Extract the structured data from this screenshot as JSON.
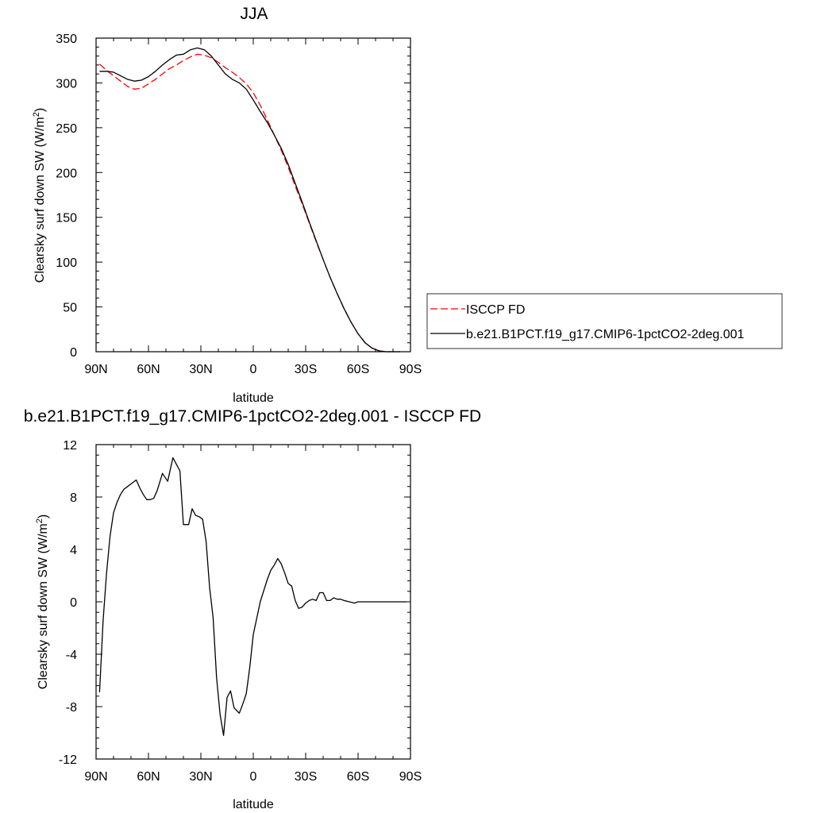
{
  "chart_data": [
    {
      "type": "line",
      "title": "JJA",
      "xlabel": "latitude",
      "ylabel": "Clearsky surf down SW (W/m",
      "ylabel_sup": "2",
      "ylabel_end": ")",
      "xlim": [
        90,
        -90
      ],
      "ylim": [
        0,
        350
      ],
      "xticks": [
        90,
        60,
        30,
        0,
        -30,
        -60,
        -90
      ],
      "xtick_labels": [
        "90N",
        "60N",
        "30N",
        "0",
        "30S",
        "60S",
        "90S"
      ],
      "yticks": [
        0,
        50,
        100,
        150,
        200,
        250,
        300,
        350
      ],
      "ytick_labels": [
        "0",
        "50",
        "100",
        "150",
        "200",
        "250",
        "300",
        "350"
      ],
      "legend_position": "right",
      "series": [
        {
          "name": "ISCCP FD",
          "color": "#ff0000",
          "dash": true,
          "x": [
            88,
            84,
            80,
            76,
            72,
            68,
            64,
            60,
            56,
            52,
            48,
            44,
            40,
            36,
            32,
            28,
            24,
            20,
            16,
            12,
            8,
            4,
            0,
            -4,
            -8,
            -12,
            -16,
            -20,
            -24,
            -28,
            -32,
            -36,
            -40,
            -44,
            -48,
            -52,
            -56,
            -60,
            -64,
            -68,
            -72,
            -76,
            -80,
            -84
          ],
          "y": [
            321,
            314,
            308,
            302,
            296,
            293,
            294,
            299,
            304,
            310,
            316,
            320,
            325,
            329,
            332,
            331,
            328,
            323,
            317,
            312,
            306,
            299,
            289,
            275,
            259,
            242,
            225,
            206,
            185,
            165,
            144,
            123,
            103,
            83,
            65,
            48,
            33,
            20,
            10,
            4,
            1,
            0,
            0,
            0
          ]
        },
        {
          "name": "b.e21.B1PCT.f19_g17.CMIP6-1pctCO2-2deg.001",
          "color": "#000000",
          "dash": false,
          "x": [
            88,
            84,
            80,
            76,
            72,
            68,
            64,
            60,
            56,
            52,
            48,
            44,
            40,
            36,
            32,
            28,
            24,
            20,
            16,
            12,
            8,
            4,
            0,
            -4,
            -8,
            -12,
            -16,
            -20,
            -24,
            -28,
            -32,
            -36,
            -40,
            -44,
            -48,
            -52,
            -56,
            -60,
            -64,
            -68,
            -72,
            -76,
            -80,
            -84
          ],
          "y": [
            313,
            313,
            312,
            308,
            304,
            302,
            303,
            307,
            313,
            320,
            326,
            331,
            332,
            337,
            339,
            337,
            330,
            320,
            310,
            304,
            300,
            293,
            281,
            268,
            256,
            242,
            227,
            209,
            188,
            167,
            145,
            124,
            103,
            83,
            65,
            48,
            33,
            20,
            10,
            4,
            1,
            0,
            0,
            0
          ]
        }
      ]
    },
    {
      "type": "line",
      "title": "b.e21.B1PCT.f19_g17.CMIP6-1pctCO2-2deg.001 - ISCCP FD",
      "xlabel": "latitude",
      "ylabel": "Clearsky surf down SW (W/m",
      "ylabel_sup": "2",
      "ylabel_end": ")",
      "xlim": [
        90,
        -90
      ],
      "ylim": [
        -12,
        12
      ],
      "xticks": [
        90,
        60,
        30,
        0,
        -30,
        -60,
        -90
      ],
      "xtick_labels": [
        "90N",
        "60N",
        "30N",
        "0",
        "30S",
        "60S",
        "90S"
      ],
      "yticks": [
        -12,
        -8,
        -4,
        0,
        4,
        8,
        12
      ],
      "ytick_labels": [
        "-12",
        "-8",
        "-4",
        "0",
        "4",
        "8",
        "12"
      ],
      "series": [
        {
          "color": "#000000",
          "x": [
            88,
            86,
            84,
            82,
            80,
            78,
            76,
            74,
            72,
            70,
            67,
            65,
            63,
            61,
            59,
            57,
            55,
            52,
            49,
            46,
            44,
            42,
            40,
            37,
            35,
            33,
            31,
            29,
            27,
            25,
            23,
            21,
            19,
            17,
            15,
            13,
            11,
            8,
            6,
            4,
            2,
            0,
            -4,
            -8,
            -10,
            -12,
            -14,
            -16,
            -18,
            -20,
            -22,
            -24,
            -26,
            -28,
            -30,
            -32,
            -34,
            -36,
            -38,
            -40,
            -42,
            -44,
            -46,
            -48,
            -50,
            -52,
            -55,
            -58,
            -60,
            -63,
            -66,
            -70,
            -74,
            -78,
            -82,
            -88
          ],
          "y": [
            -6.9,
            -1.5,
            2.2,
            5.0,
            6.8,
            7.6,
            8.2,
            8.6,
            8.8,
            9.0,
            9.3,
            8.7,
            8.2,
            7.8,
            7.8,
            7.9,
            8.5,
            9.8,
            9.2,
            11.0,
            10.5,
            10.0,
            5.9,
            5.9,
            7.1,
            6.6,
            6.5,
            6.3,
            4.6,
            1.1,
            -1.2,
            -5.8,
            -8.6,
            -10.2,
            -7.3,
            -6.8,
            -8.1,
            -8.5,
            -7.8,
            -7.0,
            -5.0,
            -2.5,
            0.0,
            1.7,
            2.4,
            2.8,
            3.3,
            2.9,
            2.2,
            1.4,
            1.2,
            0.1,
            -0.5,
            -0.4,
            -0.1,
            0.1,
            0.2,
            0.1,
            0.7,
            0.7,
            0.1,
            0.1,
            0.3,
            0.2,
            0.2,
            0.1,
            0.0,
            -0.1,
            0.0,
            0.0,
            0.0,
            0.0,
            0.0,
            0.0,
            0.0,
            0.0
          ]
        }
      ]
    }
  ]
}
